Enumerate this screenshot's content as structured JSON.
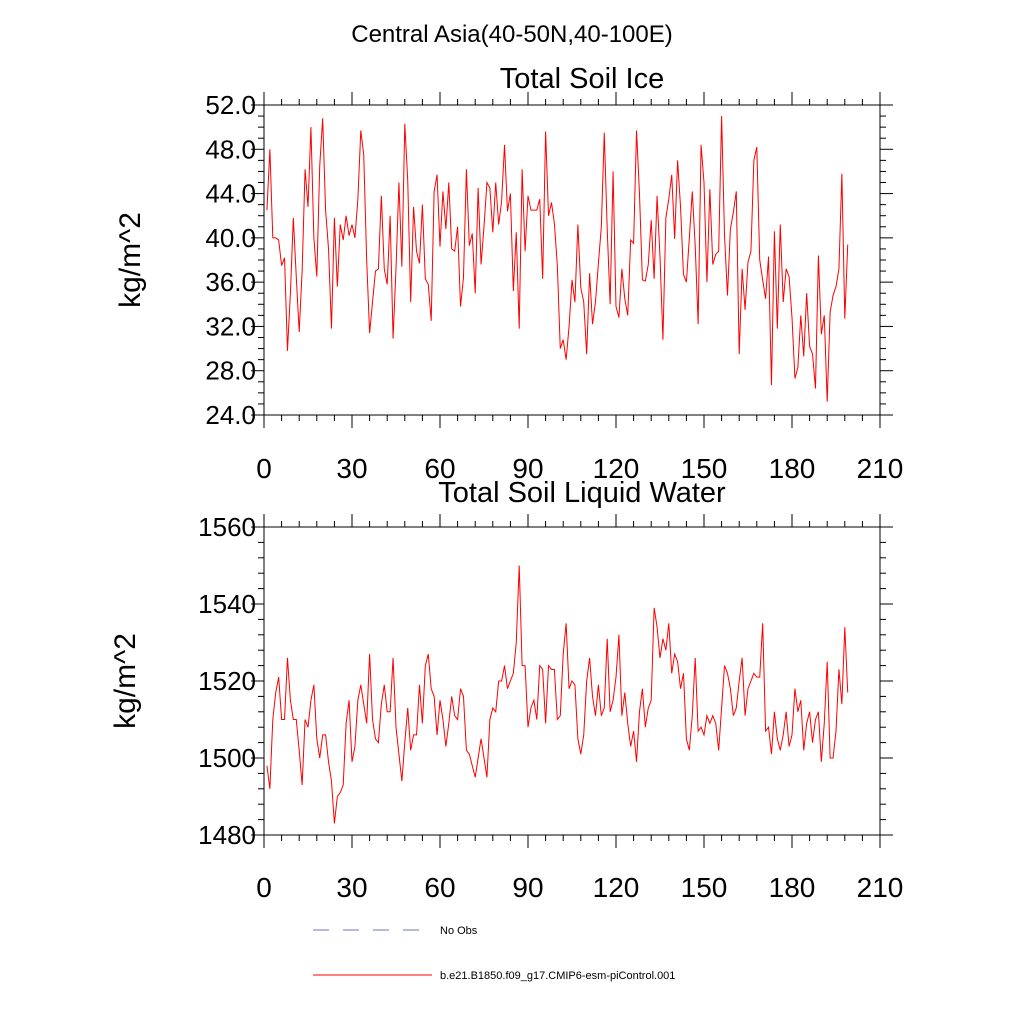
{
  "figure": {
    "suptitle": "Central Asia(40-50N,40-100E)"
  },
  "legend": {
    "entries": [
      {
        "label": "No Obs",
        "style": "dashed",
        "color": "#6e7aa8"
      },
      {
        "label": "b.e21.B1850.f09_g17.CMIP6-esm-piControl.001",
        "style": "solid",
        "color": "#ff0000"
      }
    ]
  },
  "chart_data": [
    {
      "type": "line",
      "title": "Total Soil Ice",
      "xlabel": "",
      "ylabel": "kg/m^2",
      "xlim": [
        0,
        210
      ],
      "ylim": [
        24,
        52
      ],
      "xticks": [
        0,
        30,
        60,
        90,
        120,
        150,
        180,
        210
      ],
      "yticks": [
        24,
        28,
        32,
        36,
        40,
        44,
        48,
        52
      ],
      "ytick_labels": [
        "24.0",
        "28.0",
        "32.0",
        "36.0",
        "40.0",
        "44.0",
        "48.0",
        "52.0"
      ],
      "series": [
        {
          "name": "b.e21.B1850.f09_g17.CMIP6-esm-piControl.001",
          "color": "#ff0000",
          "x_start": 1,
          "values": [
            42.5,
            48.0,
            40.0,
            40.0,
            39.8,
            37.5,
            38.2,
            29.8,
            35.0,
            41.8,
            36.5,
            31.5,
            37.0,
            46.2,
            42.8,
            50.0,
            40.0,
            36.5,
            46.5,
            50.8,
            42.5,
            39.0,
            31.8,
            41.8,
            35.6,
            41.2,
            39.8,
            42.0,
            40.2,
            41.2,
            40.0,
            43.5,
            49.7,
            47.5,
            38.0,
            31.4,
            34.2,
            37.0,
            37.2,
            43.8,
            37.2,
            35.8,
            42.0,
            30.9,
            37.2,
            45.0,
            37.4,
            50.3,
            45.2,
            34.2,
            42.8,
            38.8,
            37.7,
            43.0,
            36.3,
            35.8,
            32.5,
            44.2,
            45.7,
            39.2,
            44.2,
            40.8,
            45.0,
            39.0,
            38.8,
            41.0,
            33.8,
            36.4,
            46.2,
            39.3,
            40.4,
            35.0,
            44.5,
            37.6,
            41.0,
            45.0,
            44.5,
            40.5,
            45.0,
            41.2,
            43.3,
            48.4,
            42.4,
            44.0,
            35.2,
            40.5,
            31.8,
            46.2,
            38.8,
            43.8,
            42.5,
            42.5,
            42.5,
            43.5,
            36.3,
            49.6,
            42.0,
            43.2,
            41.3,
            37.5,
            30.0,
            30.8,
            29.0,
            32.0,
            36.2,
            34.2,
            41.2,
            35.5,
            34.2,
            29.5,
            36.8,
            32.2,
            34.2,
            37.7,
            41.0,
            49.5,
            40.8,
            34.0,
            46.0,
            33.8,
            32.8,
            37.2,
            34.5,
            33.0,
            39.8,
            39.5,
            49.7,
            44.0,
            36.2,
            36.1,
            37.6,
            41.6,
            36.3,
            43.8,
            38.3,
            30.8,
            41.8,
            43.5,
            45.7,
            39.9,
            47.0,
            42.8,
            36.7,
            36.0,
            40.0,
            44.2,
            39.3,
            32.2,
            48.4,
            45.0,
            36.0,
            44.4,
            37.6,
            38.5,
            38.8,
            51.0,
            40.2,
            34.8,
            40.8,
            42.3,
            44.2,
            29.5,
            37.2,
            33.5,
            37.8,
            38.8,
            47.0,
            48.2,
            38.0,
            36.2,
            34.5,
            38.3,
            26.7,
            40.6,
            31.8,
            41.2,
            34.2,
            37.2,
            36.5,
            32.8,
            27.3,
            28.3,
            33.0,
            29.3,
            35.0,
            30.2,
            29.5,
            26.4,
            38.4,
            31.3,
            33.0,
            25.2,
            33.3,
            34.8,
            35.6,
            37.2,
            45.8,
            32.7,
            39.4
          ]
        }
      ]
    },
    {
      "type": "line",
      "title": "Total Soil Liquid Water",
      "xlabel": "",
      "ylabel": "kg/m^2",
      "xlim": [
        0,
        210
      ],
      "ylim": [
        1480,
        1560
      ],
      "xticks": [
        0,
        30,
        60,
        90,
        120,
        150,
        180,
        210
      ],
      "yticks": [
        1480,
        1500,
        1520,
        1540,
        1560
      ],
      "ytick_labels": [
        "1480",
        "1500",
        "1520",
        "1540",
        "1560"
      ],
      "series": [
        {
          "name": "b.e21.B1850.f09_g17.CMIP6-esm-piControl.001",
          "color": "#ff0000",
          "x_start": 1,
          "values": [
            1498,
            1492,
            1510,
            1517,
            1521,
            1510,
            1510,
            1526,
            1515,
            1510,
            1510,
            1502,
            1493,
            1510,
            1508,
            1515,
            1519,
            1505,
            1500,
            1506,
            1506,
            1499,
            1494,
            1483,
            1490,
            1491,
            1493,
            1509,
            1515,
            1499,
            1503,
            1515,
            1519,
            1514,
            1509,
            1527,
            1510,
            1505,
            1504,
            1514,
            1519,
            1512,
            1512,
            1526,
            1508,
            1501,
            1494,
            1504,
            1513,
            1502,
            1506,
            1506,
            1519,
            1509,
            1524,
            1527,
            1518,
            1516,
            1506,
            1515,
            1510,
            1503,
            1509,
            1516,
            1511,
            1510,
            1518,
            1516,
            1502,
            1501,
            1498,
            1495,
            1500,
            1505,
            1500,
            1495,
            1510,
            1513,
            1512,
            1520,
            1520,
            1524,
            1518,
            1520,
            1522,
            1530,
            1550,
            1524,
            1524,
            1508,
            1513,
            1515,
            1510,
            1524,
            1523,
            1509,
            1524,
            1523,
            1523,
            1510,
            1511,
            1527,
            1535,
            1518,
            1520,
            1519,
            1505,
            1501,
            1506,
            1520,
            1526,
            1516,
            1511,
            1519,
            1511,
            1513,
            1531,
            1512,
            1515,
            1521,
            1532,
            1511,
            1517,
            1509,
            1503,
            1507,
            1499,
            1512,
            1518,
            1508,
            1513,
            1515,
            1539,
            1534,
            1526,
            1531,
            1528,
            1535,
            1522,
            1527,
            1525,
            1518,
            1522,
            1505,
            1502,
            1511,
            1526,
            1507,
            1508,
            1506,
            1511,
            1509,
            1511,
            1509,
            1502,
            1513,
            1524,
            1522,
            1518,
            1511,
            1513,
            1520,
            1526,
            1511,
            1518,
            1520,
            1522,
            1521,
            1521,
            1535,
            1507,
            1508,
            1501,
            1512,
            1505,
            1502,
            1506,
            1512,
            1503,
            1506,
            1518,
            1512,
            1515,
            1502,
            1509,
            1512,
            1504,
            1510,
            1512,
            1499,
            1509,
            1525,
            1500,
            1500,
            1507,
            1523,
            1514,
            1534,
            1517
          ]
        }
      ]
    }
  ]
}
